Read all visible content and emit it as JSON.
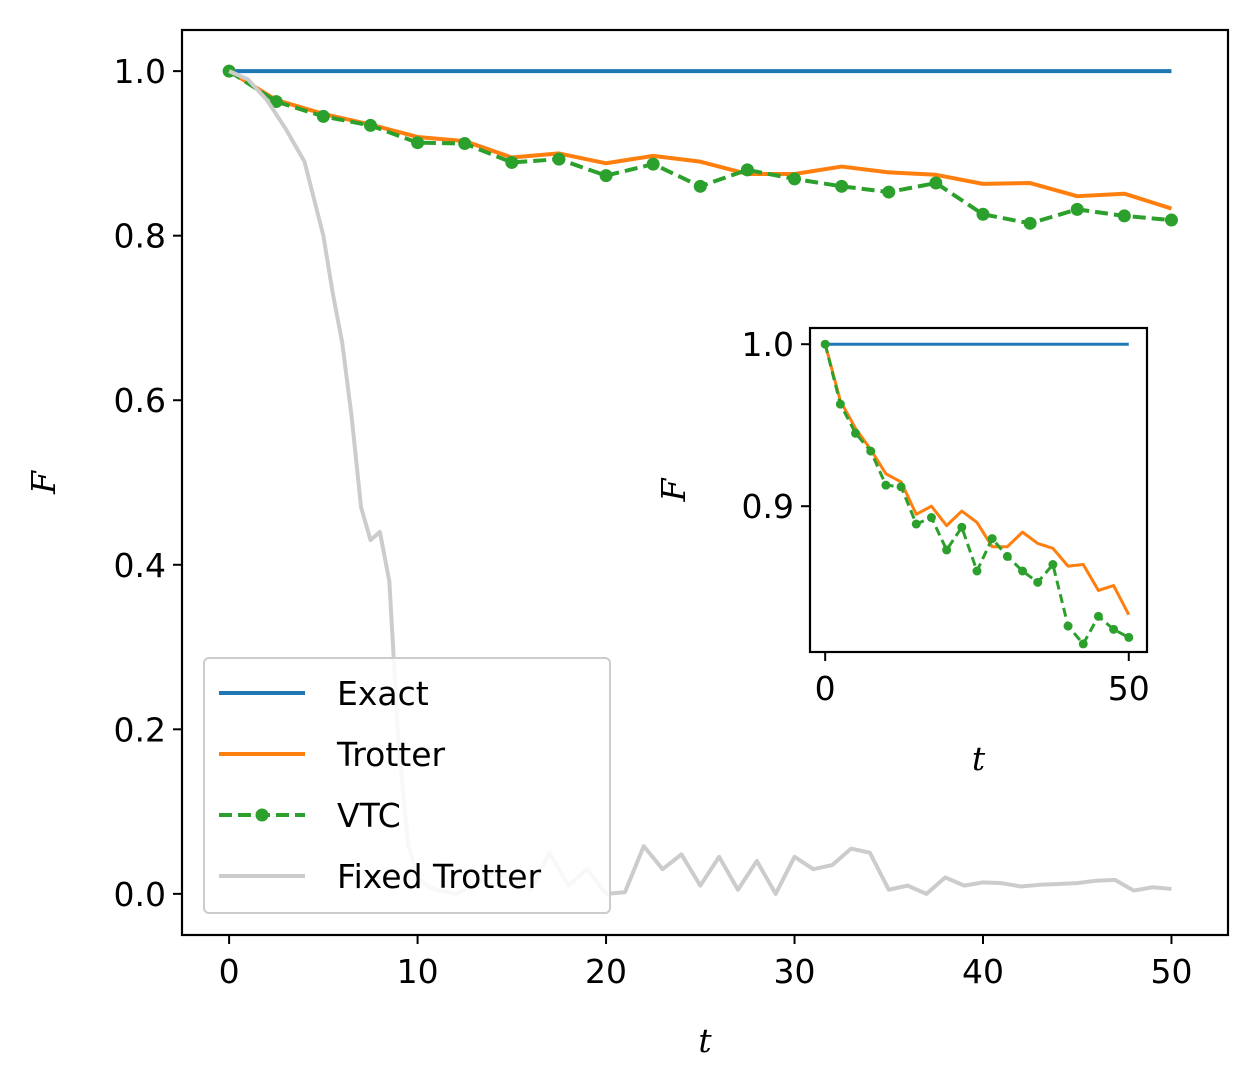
{
  "chart_data": [
    {
      "type": "line",
      "xlabel": "t",
      "ylabel": "F",
      "xlim": [
        -2.5,
        53
      ],
      "ylim": [
        -0.05,
        1.05
      ],
      "xticks": [
        0,
        10,
        20,
        30,
        40,
        50
      ],
      "xtick_labels": [
        "0",
        "10",
        "20",
        "30",
        "40",
        "50"
      ],
      "yticks": [
        0.0,
        0.2,
        0.4,
        0.6,
        0.8,
        1.0
      ],
      "ytick_labels": [
        "0.0",
        "0.2",
        "0.4",
        "0.6",
        "0.8",
        "1.0"
      ],
      "grid": false,
      "legend_position": "lower-left",
      "series": [
        {
          "name": "Exact",
          "color": "#1f77b4",
          "style": "solid",
          "x": [
            0,
            50
          ],
          "y": [
            1.0,
            1.0
          ]
        },
        {
          "name": "Trotter",
          "color": "#ff7f0e",
          "style": "solid",
          "x": [
            0,
            2.5,
            5,
            7.5,
            10,
            12.5,
            15,
            17.5,
            20,
            22.5,
            25,
            27.5,
            30,
            32.5,
            35,
            37.5,
            40,
            42.5,
            45,
            47.5,
            50
          ],
          "y": [
            1.0,
            0.965,
            0.948,
            0.935,
            0.92,
            0.915,
            0.895,
            0.9,
            0.888,
            0.897,
            0.89,
            0.875,
            0.875,
            0.884,
            0.877,
            0.874,
            0.863,
            0.864,
            0.848,
            0.851,
            0.833
          ]
        },
        {
          "name": "VTC",
          "color": "#2ca02c",
          "style": "dashed-marker",
          "x": [
            0,
            2.5,
            5,
            7.5,
            10,
            12.5,
            15,
            17.5,
            20,
            22.5,
            25,
            27.5,
            30,
            32.5,
            35,
            37.5,
            40,
            42.5,
            45,
            47.5,
            50
          ],
          "y": [
            1.0,
            0.963,
            0.945,
            0.934,
            0.913,
            0.912,
            0.889,
            0.893,
            0.873,
            0.887,
            0.86,
            0.88,
            0.869,
            0.86,
            0.853,
            0.864,
            0.826,
            0.815,
            0.832,
            0.824,
            0.819
          ]
        },
        {
          "name": "Fixed Trotter",
          "color": "#cccccc",
          "style": "solid",
          "x": [
            0,
            1,
            2,
            3,
            4,
            5,
            5.5,
            6,
            6.5,
            7,
            7.5,
            8,
            8.5,
            9,
            9.5,
            10,
            10.5,
            11,
            12,
            13,
            14,
            15,
            16,
            17,
            18,
            19,
            20,
            21,
            22,
            23,
            24,
            25,
            26,
            27,
            28,
            29,
            30,
            31,
            32,
            33,
            34,
            35,
            36,
            37,
            38,
            39,
            40,
            41,
            42,
            43,
            44,
            45,
            46,
            47,
            48,
            49,
            50
          ],
          "y": [
            1.0,
            0.99,
            0.965,
            0.93,
            0.89,
            0.8,
            0.73,
            0.67,
            0.58,
            0.47,
            0.43,
            0.44,
            0.38,
            0.18,
            0.06,
            0.02,
            0.01,
            0.005,
            0.0,
            0.01,
            0.025,
            0.02,
            0.005,
            0.05,
            0.01,
            0.03,
            0.0,
            0.002,
            0.058,
            0.03,
            0.048,
            0.01,
            0.045,
            0.005,
            0.04,
            0.0,
            0.045,
            0.03,
            0.035,
            0.055,
            0.05,
            0.005,
            0.01,
            0.0,
            0.02,
            0.01,
            0.014,
            0.013,
            0.009,
            0.011,
            0.012,
            0.013,
            0.016,
            0.017,
            0.004,
            0.008,
            0.006
          ]
        }
      ]
    },
    {
      "type": "line",
      "xlabel": "t",
      "ylabel": "F",
      "xlim": [
        -2.5,
        53
      ],
      "ylim": [
        0.81,
        1.01
      ],
      "xticks": [
        0,
        50
      ],
      "xtick_labels": [
        "0",
        "50"
      ],
      "yticks": [
        0.9,
        1.0
      ],
      "ytick_labels": [
        "0.9",
        "1.0"
      ],
      "grid": false,
      "series": [
        {
          "name": "Exact",
          "color": "#1f77b4",
          "style": "solid",
          "x": [
            0,
            50
          ],
          "y": [
            1.0,
            1.0
          ]
        },
        {
          "name": "Trotter",
          "color": "#ff7f0e",
          "style": "solid",
          "x": [
            0,
            2.5,
            5,
            7.5,
            10,
            12.5,
            15,
            17.5,
            20,
            22.5,
            25,
            27.5,
            30,
            32.5,
            35,
            37.5,
            40,
            42.5,
            45,
            47.5,
            50
          ],
          "y": [
            1.0,
            0.965,
            0.948,
            0.935,
            0.92,
            0.915,
            0.895,
            0.9,
            0.888,
            0.897,
            0.89,
            0.875,
            0.875,
            0.884,
            0.877,
            0.874,
            0.863,
            0.864,
            0.848,
            0.851,
            0.833
          ]
        },
        {
          "name": "VTC",
          "color": "#2ca02c",
          "style": "dashed-marker",
          "x": [
            0,
            2.5,
            5,
            7.5,
            10,
            12.5,
            15,
            17.5,
            20,
            22.5,
            25,
            27.5,
            30,
            32.5,
            35,
            37.5,
            40,
            42.5,
            45,
            47.5,
            50
          ],
          "y": [
            1.0,
            0.963,
            0.945,
            0.934,
            0.913,
            0.912,
            0.889,
            0.893,
            0.873,
            0.887,
            0.86,
            0.88,
            0.869,
            0.86,
            0.853,
            0.864,
            0.826,
            0.815,
            0.832,
            0.824,
            0.819
          ]
        }
      ]
    }
  ]
}
